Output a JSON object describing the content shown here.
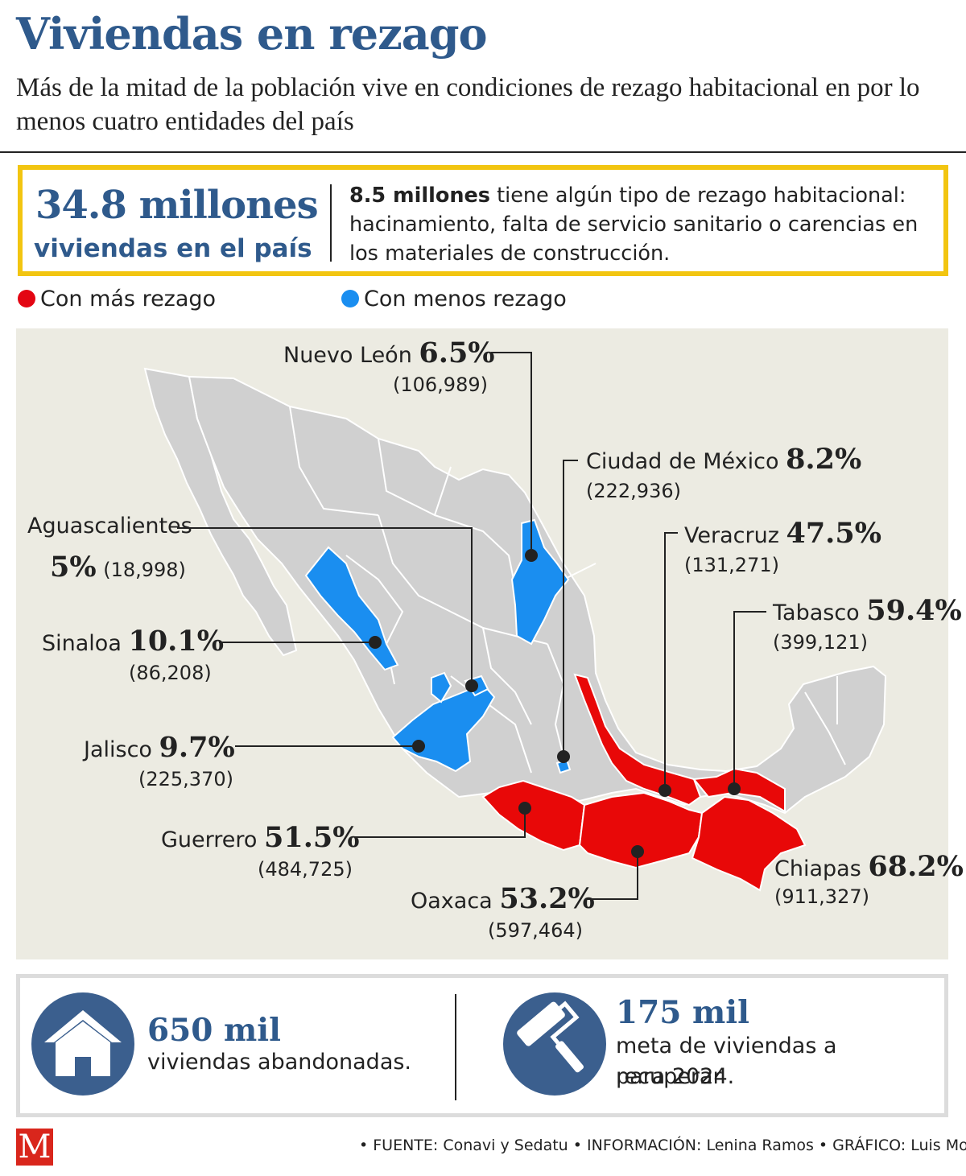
{
  "header": {
    "title": "Viviendas en rezago",
    "subtitle": "Más de la mitad de la población vive en condiciones de rezago habitacional en por lo menos cuatro entidades del país"
  },
  "stat": {
    "big": "34.8 millones",
    "sub": "viviendas en el país",
    "desc_bold": "8.5 millones",
    "desc_rest": " tiene algún tipo de rezago habitacional: hacinamiento, falta de servicio sanitario o carencias en los materiales de construcción."
  },
  "legend": {
    "more": "Con más rezago",
    "less": "Con menos rezago",
    "more_color": "#e30613",
    "less_color": "#1a8ef0"
  },
  "states": {
    "nuevo_leon": {
      "name": "Nuevo León",
      "pct": "6.5%",
      "count": "(106,989)"
    },
    "cdmx": {
      "name": "Ciudad de México",
      "pct": "8.2%",
      "count": "(222,936)"
    },
    "veracruz": {
      "name": "Veracruz",
      "pct": "47.5%",
      "count": "(131,271)"
    },
    "tabasco": {
      "name": "Tabasco",
      "pct": "59.4%",
      "count": "(399,121)"
    },
    "aguascalientes": {
      "name": "Aguascalientes",
      "pct": "5%",
      "count": "(18,998)"
    },
    "sinaloa": {
      "name": "Sinaloa",
      "pct": "10.1%",
      "count": "(86,208)"
    },
    "jalisco": {
      "name": "Jalisco",
      "pct": "9.7%",
      "count": "(225,370)"
    },
    "guerrero": {
      "name": "Guerrero",
      "pct": "51.5%",
      "count": "(484,725)"
    },
    "oaxaca": {
      "name": "Oaxaca",
      "pct": "53.2%",
      "count": "(597,464)"
    },
    "chiapas": {
      "name": "Chiapas",
      "pct": "68.2%",
      "count": "(911,327)"
    }
  },
  "bottom": {
    "left_num": "650 mil",
    "left_text": "viviendas abandonadas.",
    "right_num": "175 mil",
    "right_text_1": "meta de viviendas a recuperar",
    "right_text_2": "para 2024.",
    "left_icon": "house-icon",
    "right_icon": "paint-roller-icon"
  },
  "footer": {
    "logo": "M",
    "text": "• FUENTE: Conavi y Sedatu • INFORMACIÓN: Lenina Ramos • GRÁFICO: Luis Moor"
  }
}
